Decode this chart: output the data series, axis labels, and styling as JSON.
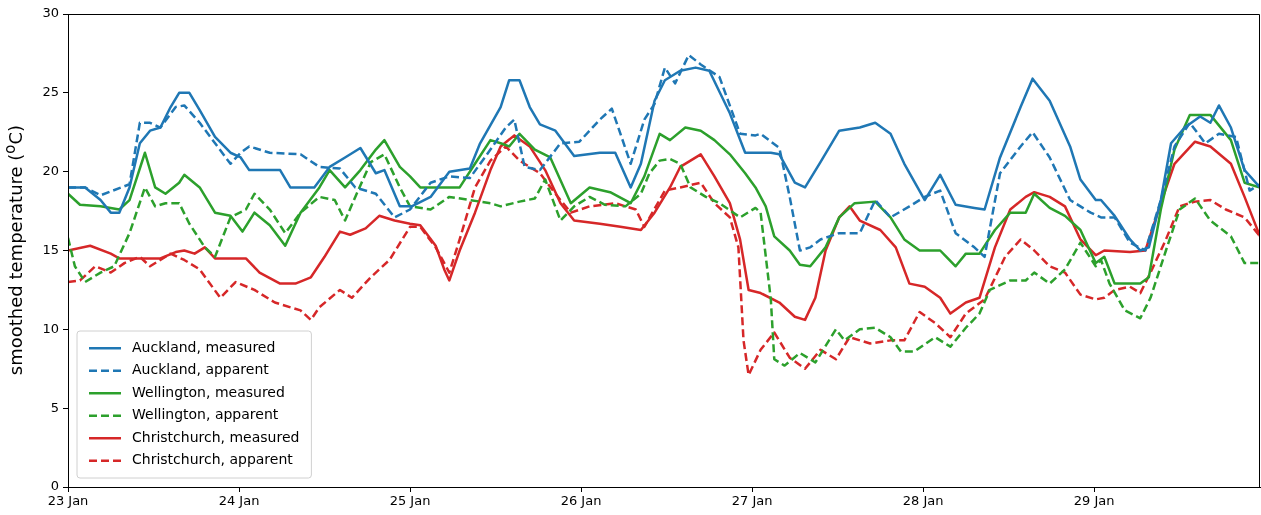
{
  "chart_data": {
    "type": "line",
    "ylabel": "smoothed temperature ($^{o}$C)",
    "xlim": [
      "--01-23T00:00",
      "--01-29T23:17"
    ],
    "xticks": [
      {
        "value": "--01-23",
        "label": "23 Jan"
      },
      {
        "value": "--01-24",
        "label": "24 Jan"
      },
      {
        "value": "--01-25",
        "label": "25 Jan"
      },
      {
        "value": "--01-26",
        "label": "26 Jan"
      },
      {
        "value": "--01-27",
        "label": "27 Jan"
      },
      {
        "value": "--01-28",
        "label": "28 Jan"
      },
      {
        "value": "--01-29",
        "label": "29 Jan"
      }
    ],
    "ylim": [
      0,
      30
    ],
    "yticks": [
      0,
      5,
      10,
      15,
      20,
      25,
      30
    ],
    "grid": false,
    "legend": "bottom left",
    "series": [
      {
        "name": "Auckland, measured",
        "color": "#1f77b4",
        "line_style": "solid",
        "x": [
          "--01-23T00:00",
          "--01-23T02:24",
          "--01-23T04:34",
          "--01-23T06:00",
          "--01-23T07:12",
          "--01-23T08:38",
          "--01-23T10:05",
          "--01-23T11:31",
          "--01-23T12:58",
          "--01-23T14:24",
          "--01-23T15:36",
          "--01-23T17:02",
          "--01-23T18:29",
          "--01-23T20:38",
          "--01-23T22:48",
          "--01-24T00:14",
          "--01-24T01:26",
          "--01-24T05:46",
          "--01-24T07:12",
          "--01-24T10:34",
          "--01-24T12:43",
          "--01-24T14:53",
          "--01-24T17:02",
          "--01-24T19:12",
          "--01-24T20:24",
          "--01-24T22:34",
          "--01-25T00:14",
          "--01-25T02:53",
          "--01-25T05:31",
          "--01-25T08:24",
          "--01-25T09:50",
          "--01-25T12:43",
          "--01-25T13:55",
          "--01-25T15:22",
          "--01-25T16:48",
          "--01-25T18:14",
          "--01-25T20:24",
          "--01-25T23:02",
          "--01-26T02:38",
          "--01-26T04:48",
          "--01-26T06:58",
          "--01-26T08:24",
          "--01-26T10:19",
          "--01-26T11:46",
          "--01-26T13:55",
          "--01-26T16:05",
          "--01-26T18:00",
          "--01-26T20:53",
          "--01-26T23:02",
          "--01-27T02:38",
          "--01-27T03:50",
          "--01-27T06:00",
          "--01-27T07:26",
          "--01-27T09:36",
          "--01-27T12:14",
          "--01-27T15:07",
          "--01-27T17:17",
          "--01-27T19:26",
          "--01-27T21:22",
          "--01-28T00:14",
          "--01-28T02:24",
          "--01-28T04:34",
          "--01-28T07:12",
          "--01-28T08:38",
          "--01-28T10:48",
          "--01-28T13:41",
          "--01-28T15:22",
          "--01-28T17:46",
          "--01-28T20:38",
          "--01-28T22:05",
          "--01-29T00:14",
          "--01-29T00:58",
          "--01-29T02:53",
          "--01-29T05:02",
          "--01-29T06:29",
          "--01-29T07:41",
          "--01-29T09:22",
          "--01-29T10:48",
          "--01-29T12:43",
          "--01-29T14:53",
          "--01-29T16:19",
          "--01-29T17:31",
          "--01-29T19:12",
          "--01-29T21:07",
          "--01-29T23:17"
        ],
        "values": [
          19.0,
          19.0,
          18.2,
          17.4,
          17.4,
          19.0,
          21.8,
          22.6,
          22.8,
          24.1,
          25.0,
          25.0,
          23.9,
          22.2,
          21.2,
          20.9,
          20.1,
          20.1,
          19.0,
          19.0,
          20.3,
          20.9,
          21.5,
          19.9,
          20.1,
          17.8,
          17.8,
          18.4,
          20.0,
          20.2,
          21.8,
          24.1,
          25.8,
          25.8,
          24.1,
          23.0,
          22.6,
          21.0,
          21.2,
          21.2,
          19.0,
          20.5,
          24.5,
          25.8,
          26.4,
          26.6,
          26.4,
          23.7,
          21.2,
          21.2,
          21.1,
          19.3,
          19.0,
          20.6,
          22.6,
          22.8,
          23.1,
          22.4,
          20.5,
          18.2,
          19.8,
          17.9,
          17.7,
          17.6,
          20.9,
          24.1,
          25.9,
          24.5,
          21.6,
          19.5,
          18.2,
          18.2,
          17.2,
          15.7,
          15.0,
          15.2,
          18.2,
          21.8,
          22.8,
          23.5,
          23.1,
          24.2,
          22.8,
          20.1,
          19.0
        ]
      },
      {
        "name": "Auckland, apparent",
        "color": "#1f77b4",
        "line_style": "dashed",
        "x": [
          "--01-23T00:00",
          "--01-23T02:24",
          "--01-23T04:34",
          "--01-23T08:38",
          "--01-23T10:05",
          "--01-23T11:31",
          "--01-23T12:58",
          "--01-23T15:07",
          "--01-23T16:19",
          "--01-23T18:29",
          "--01-23T22:48",
          "--01-24T00:14",
          "--01-24T01:26",
          "--01-24T04:19",
          "--01-24T08:38",
          "--01-24T11:17",
          "--01-24T14:10",
          "--01-24T16:19",
          "--01-24T19:12",
          "--01-24T21:50",
          "--01-25T00:00",
          "--01-25T02:53",
          "--01-25T05:31",
          "--01-25T08:24",
          "--01-25T11:17",
          "--01-25T13:26",
          "--01-25T14:38",
          "--01-25T16:05",
          "--01-25T18:14",
          "--01-25T21:07",
          "--01-25T23:46",
          "--01-26T02:38",
          "--01-26T04:19",
          "--01-26T06:58",
          "--01-26T08:53",
          "--01-26T10:19",
          "--01-26T11:46",
          "--01-26T13:12",
          "--01-26T15:07",
          "--01-26T16:48",
          "--01-26T19:26",
          "--01-26T22:19",
          "--01-27T00:29",
          "--01-27T01:12",
          "--01-27T03:50",
          "--01-27T05:17",
          "--01-27T06:43",
          "--01-27T08:10",
          "--01-27T09:36",
          "--01-27T12:14",
          "--01-27T15:07",
          "--01-27T17:17",
          "--01-27T19:26",
          "--01-27T22:05",
          "--01-28T00:14",
          "--01-28T02:24",
          "--01-28T04:34",
          "--01-28T07:12",
          "--01-28T08:38",
          "--01-28T10:48",
          "--01-28T13:41",
          "--01-28T15:22",
          "--01-28T17:46",
          "--01-28T20:38",
          "--01-28T23:31",
          "--01-29T00:58",
          "--01-29T02:53",
          "--01-29T05:02",
          "--01-29T07:12",
          "--01-29T09:22",
          "--01-29T11:17",
          "--01-29T13:26",
          "--01-29T15:36",
          "--01-29T17:31",
          "--01-29T19:55",
          "--01-29T21:50",
          "--01-29T23:17"
        ],
        "values": [
          19.0,
          19.0,
          18.5,
          19.2,
          23.1,
          23.1,
          22.8,
          24.1,
          24.2,
          23.1,
          20.5,
          21.2,
          21.6,
          21.2,
          21.1,
          20.3,
          20.2,
          19.0,
          18.6,
          17.1,
          17.6,
          19.3,
          19.7,
          19.6,
          21.4,
          22.8,
          23.3,
          20.3,
          20.1,
          21.8,
          21.9,
          23.3,
          24.0,
          20.5,
          23.3,
          24.3,
          26.6,
          25.6,
          27.4,
          26.8,
          26.0,
          22.4,
          22.3,
          22.4,
          21.5,
          18.4,
          15.0,
          15.2,
          15.7,
          16.1,
          16.1,
          18.2,
          17.1,
          17.8,
          18.4,
          18.8,
          16.1,
          15.2,
          14.6,
          19.9,
          21.6,
          22.5,
          20.9,
          18.2,
          17.4,
          17.1,
          17.1,
          15.5,
          15.0,
          18.2,
          21.6,
          23.1,
          21.8,
          22.4,
          22.2,
          18.8,
          19.2
        ]
      },
      {
        "name": "Wellington, measured",
        "color": "#2ca02c",
        "line_style": "solid",
        "x": [
          "--01-23T00:00",
          "--01-23T01:41",
          "--01-23T04:34",
          "--01-23T07:12",
          "--01-23T08:38",
          "--01-23T10:48",
          "--01-23T12:14",
          "--01-23T13:41",
          "--01-23T15:36",
          "--01-23T16:19",
          "--01-23T18:29",
          "--01-23T20:38",
          "--01-23T22:48",
          "--01-24T00:29",
          "--01-24T02:10",
          "--01-24T04:19",
          "--01-24T06:29",
          "--01-24T08:38",
          "--01-24T11:17",
          "--01-24T12:43",
          "--01-24T14:53",
          "--01-24T17:02",
          "--01-24T19:12",
          "--01-24T20:24",
          "--01-24T22:34",
          "--01-25T00:00",
          "--01-25T01:26",
          "--01-25T06:58",
          "--01-25T09:07",
          "--01-25T11:17",
          "--01-25T12:43",
          "--01-25T13:55",
          "--01-25T15:22",
          "--01-25T17:31",
          "--01-25T19:41",
          "--01-25T22:34",
          "--01-26T01:12",
          "--01-26T04:05",
          "--01-26T06:58",
          "--01-26T08:53",
          "--01-26T11:02",
          "--01-26T12:29",
          "--01-26T14:38",
          "--01-26T16:48",
          "--01-26T18:43",
          "--01-26T20:53",
          "--01-26T23:02",
          "--01-27T00:29",
          "--01-27T01:55",
          "--01-27T03:07",
          "--01-27T05:17",
          "--01-27T06:43",
          "--01-27T08:10",
          "--01-27T10:19",
          "--01-27T12:14",
          "--01-27T14:24",
          "--01-27T17:17",
          "--01-27T19:26",
          "--01-27T21:22",
          "--01-27T23:31",
          "--01-28T02:24",
          "--01-28T04:34",
          "--01-28T06:00",
          "--01-28T07:55",
          "--01-28T10:05",
          "--01-28T12:14",
          "--01-28T14:24",
          "--01-28T15:36",
          "--01-28T17:46",
          "--01-28T19:55",
          "--01-28T22:05",
          "--01-29T00:14",
          "--01-29T01:26",
          "--01-29T02:53",
          "--01-29T06:29",
          "--01-29T07:41",
          "--01-29T09:22",
          "--01-29T11:17",
          "--01-29T13:26",
          "--01-29T16:19",
          "--01-29T19:12",
          "--01-29T21:07",
          "--01-29T23:17"
        ],
        "values": [
          18.6,
          17.9,
          17.8,
          17.6,
          18.2,
          21.2,
          19.0,
          18.6,
          19.3,
          19.8,
          19.0,
          17.4,
          17.2,
          16.2,
          17.4,
          16.6,
          15.3,
          17.4,
          19.0,
          20.1,
          19.0,
          20.1,
          21.4,
          22.0,
          20.3,
          19.7,
          19.0,
          19.0,
          20.5,
          22.0,
          21.8,
          21.6,
          22.4,
          21.4,
          20.9,
          18.0,
          19.0,
          18.7,
          18.0,
          19.7,
          22.4,
          22.0,
          22.8,
          22.6,
          22.0,
          21.1,
          19.9,
          19.0,
          17.8,
          15.9,
          15.0,
          14.1,
          14.0,
          15.2,
          17.1,
          18.0,
          18.1,
          17.1,
          15.7,
          15.0,
          15.0,
          14.0,
          14.8,
          14.8,
          16.3,
          17.4,
          17.4,
          18.6,
          17.7,
          17.2,
          16.3,
          14.2,
          14.6,
          12.9,
          12.9,
          13.3,
          17.6,
          21.4,
          23.6,
          23.6,
          22.0,
          19.3,
          19.0
        ]
      },
      {
        "name": "Wellington, apparent",
        "color": "#2ca02c",
        "line_style": "dashed",
        "x": [
          "--01-23T00:00",
          "--01-23T00:58",
          "--01-23T02:24",
          "--01-23T04:34",
          "--01-23T06:29",
          "--01-23T08:38",
          "--01-23T10:48",
          "--01-23T12:14",
          "--01-23T13:41",
          "--01-23T15:36",
          "--01-23T17:02",
          "--01-23T19:12",
          "--01-23T20:38",
          "--01-23T22:48",
          "--01-24T00:58",
          "--01-24T02:10",
          "--01-24T04:19",
          "--01-24T06:29",
          "--01-24T08:38",
          "--01-24T11:17",
          "--01-24T13:26",
          "--01-24T14:53",
          "--01-24T16:19",
          "--01-24T18:29",
          "--01-24T20:24",
          "--01-24T22:34",
          "--01-25T00:00",
          "--01-25T02:53",
          "--01-25T05:31",
          "--01-25T08:24",
          "--01-25T11:17",
          "--01-25T12:43",
          "--01-25T15:22",
          "--01-25T17:31",
          "--01-25T18:58",
          "--01-25T21:07",
          "--01-25T23:02",
          "--01-26T01:12",
          "--01-26T03:22",
          "--01-26T06:14",
          "--01-26T08:24",
          "--01-26T09:36",
          "--01-26T11:02",
          "--01-26T12:29",
          "--01-26T13:55",
          "--01-26T15:22",
          "--01-26T17:31",
          "--01-26T19:26",
          "--01-26T22:19",
          "--01-27T00:29",
          "--01-27T01:12",
          "--01-27T02:38",
          "--01-27T03:07",
          "--01-27T04:34",
          "--01-27T06:43",
          "--01-27T08:53",
          "--01-27T11:46",
          "--01-27T12:58",
          "--01-27T15:07",
          "--01-27T17:17",
          "--01-27T19:26",
          "--01-27T20:53",
          "--01-27T22:48",
          "--01-28T01:41",
          "--01-28T03:50",
          "--01-28T06:00",
          "--01-28T07:55",
          "--01-28T09:22",
          "--01-28T12:14",
          "--01-28T14:24",
          "--01-28T15:36",
          "--01-28T17:46",
          "--01-28T19:55",
          "--01-28T22:05",
          "--01-29T00:14",
          "--01-29T00:58",
          "--01-29T02:10",
          "--01-29T04:19",
          "--01-29T06:29",
          "--01-29T07:55",
          "--01-29T10:05",
          "--01-29T12:00",
          "--01-29T14:10",
          "--01-29T16:19",
          "--01-29T19:12",
          "--01-29T21:07",
          "--01-29T23:17"
        ],
        "values": [
          15.8,
          14.0,
          13.0,
          13.6,
          14.0,
          16.1,
          19.0,
          17.8,
          18.0,
          18.0,
          16.7,
          15.2,
          14.6,
          17.1,
          17.6,
          18.6,
          17.6,
          16.1,
          17.4,
          18.4,
          18.2,
          16.9,
          18.4,
          20.6,
          21.1,
          19.0,
          17.8,
          17.6,
          18.4,
          18.2,
          18.0,
          17.8,
          18.1,
          18.3,
          19.5,
          16.9,
          17.8,
          18.4,
          17.9,
          17.8,
          18.6,
          19.9,
          20.7,
          20.8,
          20.5,
          19.0,
          18.4,
          18.0,
          17.1,
          17.7,
          17.4,
          11.9,
          8.1,
          7.7,
          8.5,
          7.9,
          10.0,
          9.3,
          10.0,
          10.1,
          9.5,
          8.6,
          8.6,
          9.5,
          8.9,
          10.1,
          11.0,
          12.5,
          13.1,
          13.1,
          13.6,
          12.9,
          13.8,
          15.5,
          14.0,
          14.4,
          12.9,
          11.2,
          10.7,
          12.0,
          15.0,
          17.6,
          18.3,
          16.9,
          15.9,
          14.2,
          14.2
        ]
      },
      {
        "name": "Christchurch, measured",
        "color": "#d62728",
        "line_style": "solid",
        "x": [
          "--01-23T00:00",
          "--01-23T03:07",
          "--01-23T06:00",
          "--01-23T07:12",
          "--01-23T12:58",
          "--01-23T15:07",
          "--01-23T16:19",
          "--01-23T17:46",
          "--01-23T19:12",
          "--01-23T20:38",
          "--01-24T00:58",
          "--01-24T02:53",
          "--01-24T05:46",
          "--01-24T07:55",
          "--01-24T10:05",
          "--01-24T12:00",
          "--01-24T14:10",
          "--01-24T15:36",
          "--01-24T17:46",
          "--01-24T19:41",
          "--01-24T21:50",
          "--01-25T00:00",
          "--01-25T01:26",
          "--01-25T03:36",
          "--01-25T04:48",
          "--01-25T05:31",
          "--01-25T06:58",
          "--01-25T09:07",
          "--01-25T11:17",
          "--01-25T12:43",
          "--01-25T14:38",
          "--01-25T16:48",
          "--01-25T18:58",
          "--01-25T21:07",
          "--01-25T23:02",
          "--01-26T02:38",
          "--01-26T05:31",
          "--01-26T08:24",
          "--01-26T10:19",
          "--01-26T12:29",
          "--01-26T13:55",
          "--01-26T16:48",
          "--01-26T18:43",
          "--01-26T20:53",
          "--01-26T22:19",
          "--01-26T23:31",
          "--01-27T01:12",
          "--01-27T03:50",
          "--01-27T06:00",
          "--01-27T07:26",
          "--01-27T08:53",
          "--01-27T10:19",
          "--01-27T12:14",
          "--01-27T13:41",
          "--01-27T15:07",
          "--01-27T18:00",
          "--01-27T20:10",
          "--01-27T22:05",
          "--01-28T00:14",
          "--01-28T02:24",
          "--01-28T03:50",
          "--01-28T06:00",
          "--01-28T07:55",
          "--01-28T10:05",
          "--01-28T12:14",
          "--01-28T14:24",
          "--01-28T15:36",
          "--01-28T17:46",
          "--01-28T19:55",
          "--01-28T22:05",
          "--01-29T00:14",
          "--01-29T01:26",
          "--01-29T05:02",
          "--01-29T07:12",
          "--01-29T09:22",
          "--01-29T11:17",
          "--01-29T14:10",
          "--01-29T16:19",
          "--01-29T19:12",
          "--01-29T21:07",
          "--01-29T23:17"
        ],
        "values": [
          15.0,
          15.3,
          14.8,
          14.5,
          14.5,
          14.9,
          15.0,
          14.8,
          15.2,
          14.5,
          14.5,
          13.6,
          12.9,
          12.9,
          13.3,
          14.6,
          16.2,
          16.0,
          16.4,
          17.2,
          16.9,
          16.7,
          16.6,
          15.3,
          13.8,
          13.1,
          15.0,
          17.4,
          20.1,
          21.6,
          22.3,
          21.6,
          20.1,
          18.0,
          16.9,
          16.7,
          16.5,
          16.3,
          17.4,
          19.0,
          20.3,
          21.1,
          19.7,
          18.0,
          15.7,
          12.5,
          12.3,
          11.7,
          10.8,
          10.6,
          12.0,
          15.0,
          17.1,
          17.8,
          16.9,
          16.3,
          15.2,
          12.9,
          12.7,
          12.0,
          11.0,
          11.7,
          12.0,
          15.2,
          17.6,
          18.4,
          18.7,
          18.4,
          17.8,
          15.7,
          14.7,
          15.0,
          14.9,
          15.0,
          18.0,
          20.5,
          21.9,
          21.6,
          20.5,
          18.4,
          15.9
        ]
      },
      {
        "name": "Christchurch, apparent",
        "color": "#d62728",
        "line_style": "dashed",
        "x": [
          "--01-23T00:00",
          "--01-23T01:41",
          "--01-23T03:50",
          "--01-23T06:00",
          "--01-23T07:55",
          "--01-23T10:05",
          "--01-23T11:31",
          "--01-23T14:24",
          "--01-23T16:19",
          "--01-23T18:29",
          "--01-23T21:22",
          "--01-23T23:31",
          "--01-24T02:10",
          "--01-24T05:02",
          "--01-24T08:38",
          "--01-24T10:05",
          "--01-24T11:17",
          "--01-24T14:10",
          "--01-24T15:50",
          "--01-24T18:29",
          "--01-24T21:07",
          "--01-25T00:00",
          "--01-25T01:26",
          "--01-25T03:36",
          "--01-25T05:31",
          "--01-25T06:58",
          "--01-25T09:07",
          "--01-25T11:17",
          "--01-25T13:26",
          "--01-25T15:22",
          "--01-25T18:14",
          "--01-25T20:24",
          "--01-25T22:34",
          "--01-26T01:12",
          "--01-26T04:48",
          "--01-26T07:41",
          "--01-26T08:53",
          "--01-26T11:46",
          "--01-26T13:55",
          "--01-26T16:48",
          "--01-26T18:43",
          "--01-26T20:53",
          "--01-26T22:05",
          "--01-26T22:48",
          "--01-26T23:31",
          "--01-27T01:12",
          "--01-27T03:07",
          "--01-27T05:17",
          "--01-27T07:26",
          "--01-27T09:36",
          "--01-27T11:46",
          "--01-27T13:41",
          "--01-27T16:34",
          "--01-27T19:26",
          "--01-27T21:22",
          "--01-27T23:31",
          "--01-28T01:41",
          "--01-28T03:50",
          "--01-28T06:00",
          "--01-28T08:38",
          "--01-28T11:31",
          "--01-28T13:41",
          "--01-28T15:36",
          "--01-28T17:46",
          "--01-28T19:55",
          "--01-28T22:05",
          "--01-29T00:14",
          "--01-29T01:26",
          "--01-29T02:53",
          "--01-29T05:02",
          "--01-29T06:29",
          "--01-29T07:55",
          "--01-29T10:05",
          "--01-29T12:00",
          "--01-29T14:10",
          "--01-29T16:19",
          "--01-29T18:29",
          "--01-29T21:07",
          "--01-29T23:17"
        ],
        "values": [
          13.0,
          13.1,
          14.0,
          13.6,
          14.2,
          14.6,
          14.0,
          14.8,
          14.4,
          13.8,
          12.0,
          13.0,
          12.5,
          11.7,
          11.2,
          10.6,
          11.4,
          12.5,
          12.0,
          13.3,
          14.4,
          16.5,
          16.5,
          15.2,
          13.6,
          15.7,
          19.0,
          20.7,
          21.6,
          20.7,
          19.9,
          18.6,
          17.4,
          17.8,
          18.0,
          17.6,
          16.5,
          18.8,
          19.0,
          19.3,
          18.0,
          17.1,
          15.2,
          9.3,
          7.1,
          8.7,
          9.8,
          8.2,
          7.5,
          8.7,
          8.1,
          9.5,
          9.1,
          9.3,
          9.3,
          11.1,
          10.4,
          9.5,
          11.0,
          11.9,
          14.6,
          15.7,
          15.0,
          14.0,
          13.6,
          12.2,
          11.9,
          12.0,
          12.5,
          12.7,
          12.3,
          13.6,
          15.7,
          17.8,
          18.1,
          18.2,
          17.6,
          17.1,
          15.9
        ]
      }
    ]
  }
}
